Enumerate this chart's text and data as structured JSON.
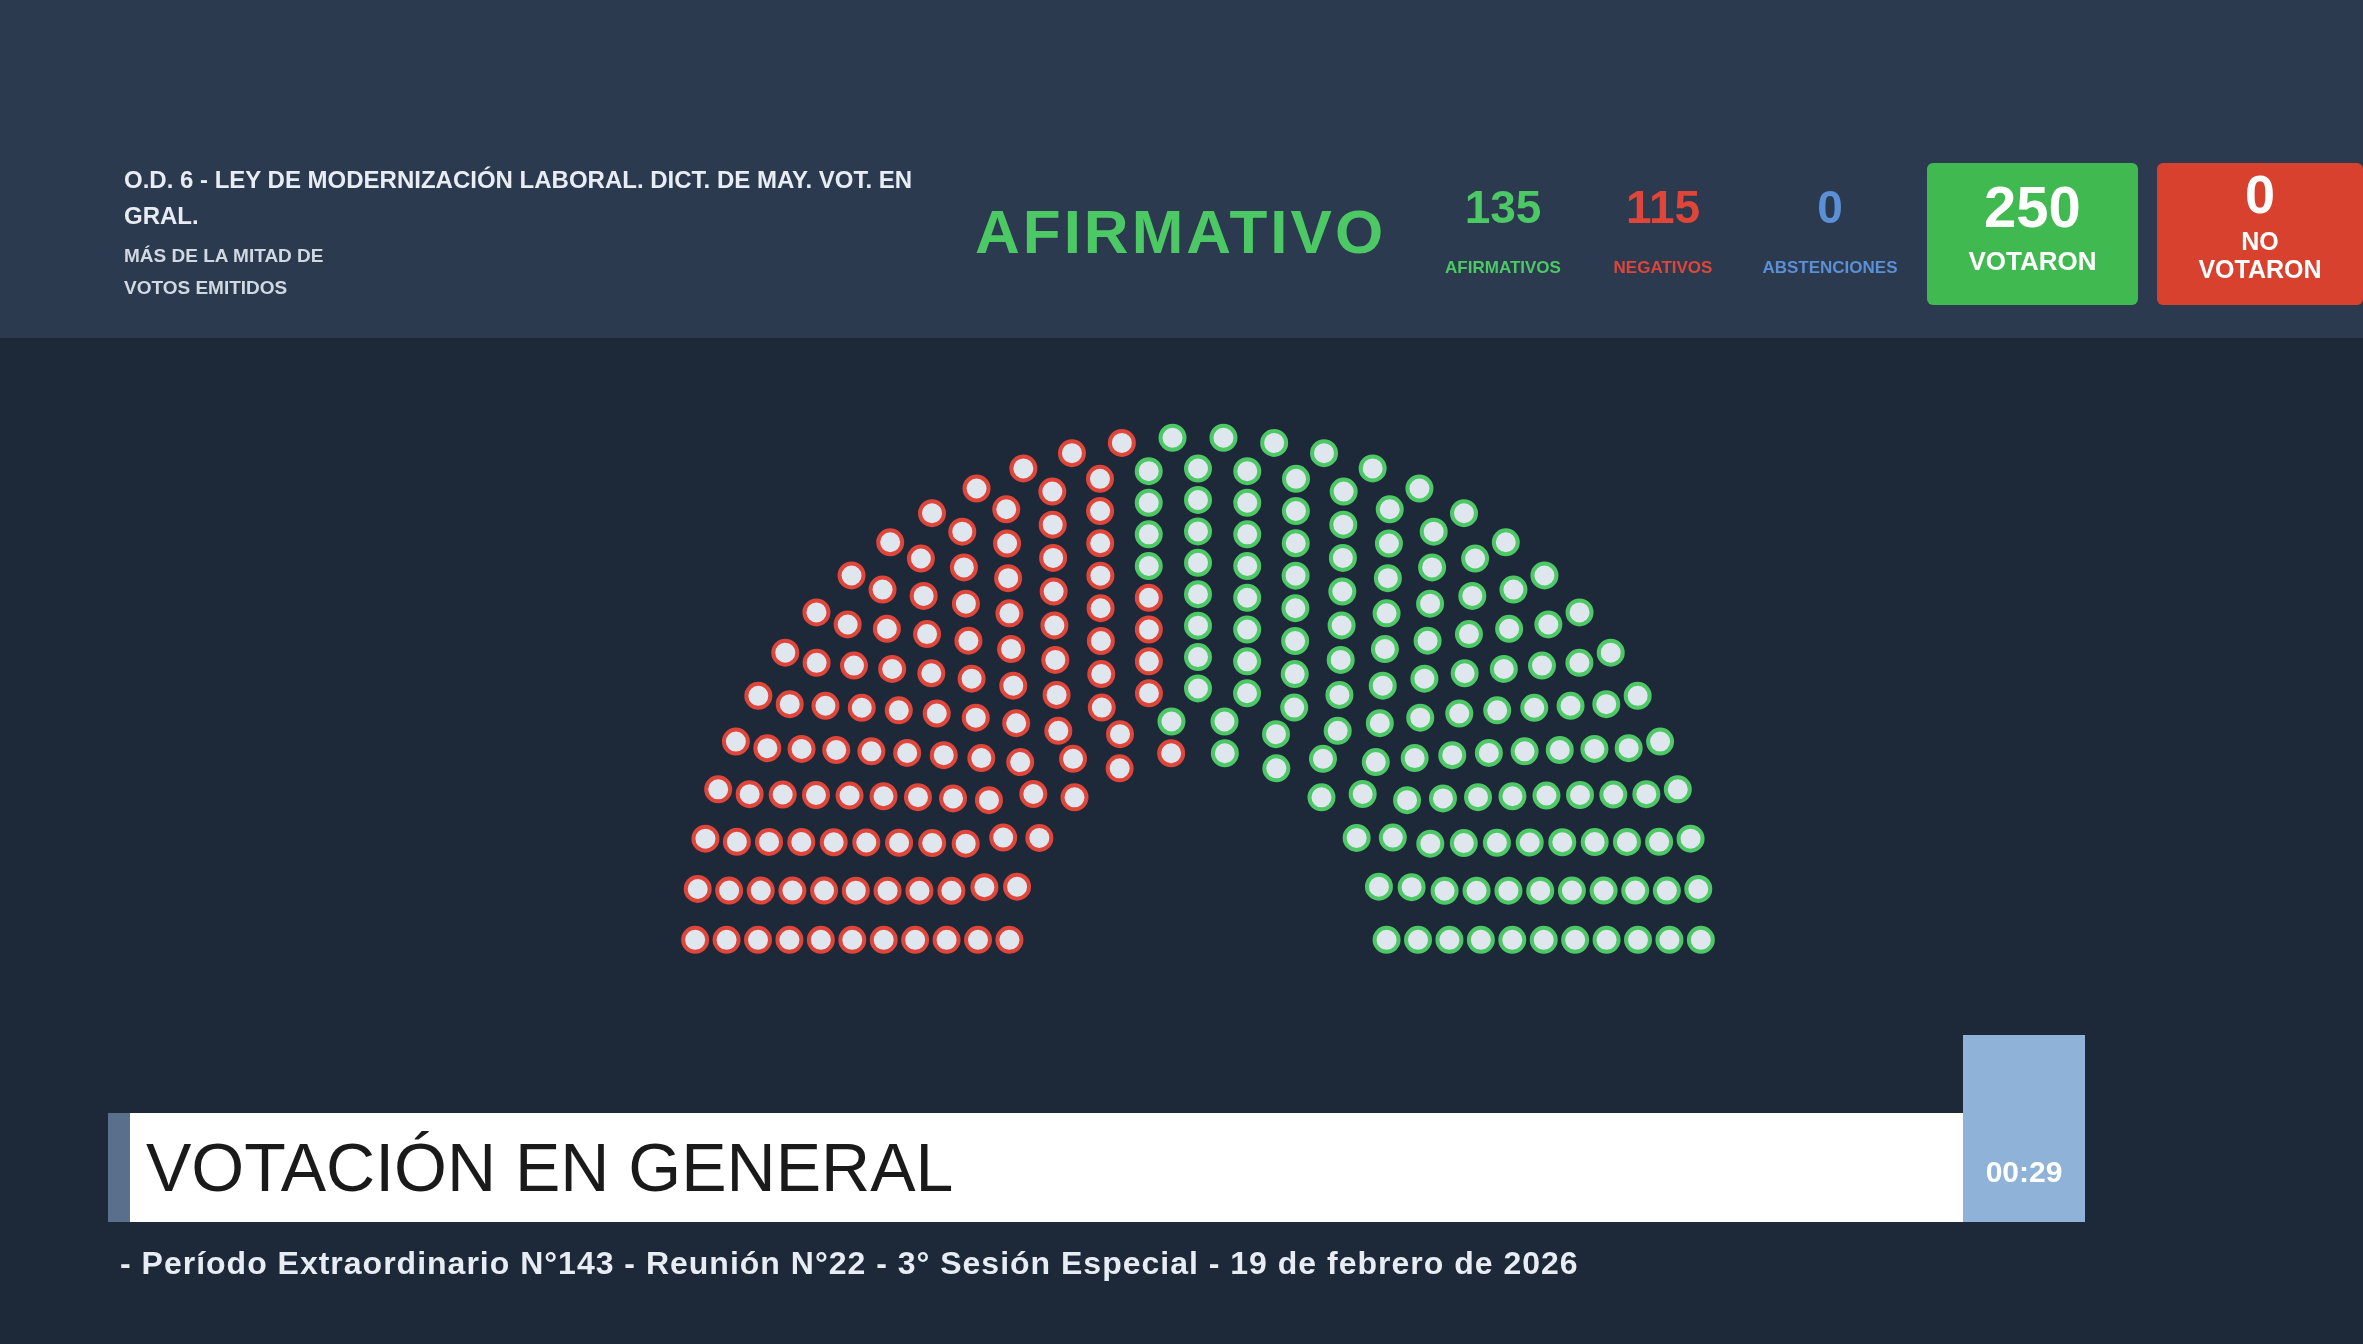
{
  "chart_data": {
    "type": "other",
    "title": "O.D. 6 - LEY DE MODERNIZACIÓN LABORAL. DICT. DE MAY. VOT. EN GRAL.",
    "subtitle": "MÁS DE LA MITAD DE VOTOS EMITIDOS",
    "categories": [
      "AFIRMATIVOS",
      "NEGATIVOS",
      "ABSTENCIONES"
    ],
    "values": [
      135,
      115,
      0
    ],
    "data_labels": true,
    "colors": [
      "#4cc865",
      "#e0453a",
      "#5b8fd6"
    ],
    "annotations": [
      "AFIRMATIVO",
      "250",
      "VOTARON",
      "0",
      "NO VOTARON",
      "VOTACIÓN EN GENERAL",
      "- Período Extraordinario N°143 - Reunión N°22 - 3° Sesión Especial - 19 de febrero de 2026",
      "00:29"
    ]
  }
}
